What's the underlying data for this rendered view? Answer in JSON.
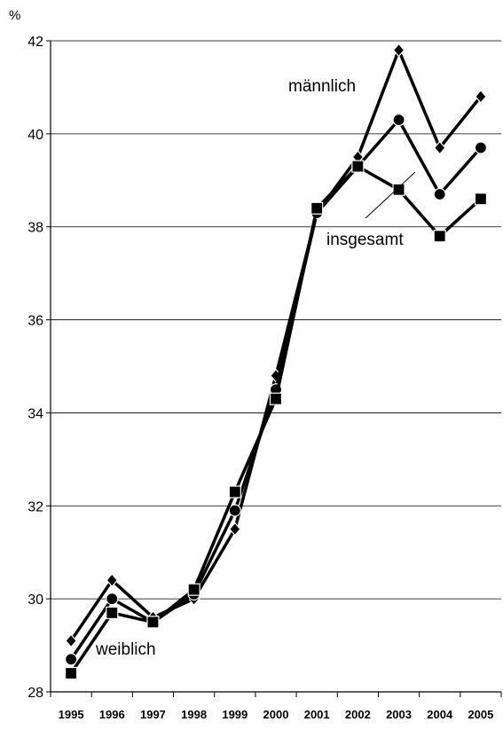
{
  "chart_data": {
    "type": "line",
    "unit_label": "%",
    "x": [
      "1995",
      "1996",
      "1997",
      "1998",
      "1999",
      "2000",
      "2001",
      "2002",
      "2003",
      "2004",
      "2005"
    ],
    "ylim": [
      28,
      42
    ],
    "yticks": [
      "28",
      "30",
      "32",
      "34",
      "36",
      "38",
      "40",
      "42"
    ],
    "grid": true,
    "series": [
      {
        "name": "männlich",
        "marker": "diamond",
        "values": [
          29.1,
          30.4,
          29.6,
          30.0,
          31.5,
          34.8,
          38.3,
          39.5,
          41.8,
          39.7,
          40.8
        ]
      },
      {
        "name": "weiblich",
        "marker": "circle",
        "values": [
          28.7,
          30.0,
          29.5,
          30.1,
          31.9,
          34.5,
          38.3,
          39.3,
          40.3,
          38.7,
          39.7
        ]
      },
      {
        "name": "insgesamt",
        "marker": "square",
        "values": [
          28.4,
          29.7,
          29.5,
          30.2,
          32.3,
          34.3,
          38.4,
          39.3,
          38.8,
          37.8,
          38.6
        ]
      }
    ],
    "colors": {
      "line": "#000000",
      "grid": "#000000"
    }
  }
}
